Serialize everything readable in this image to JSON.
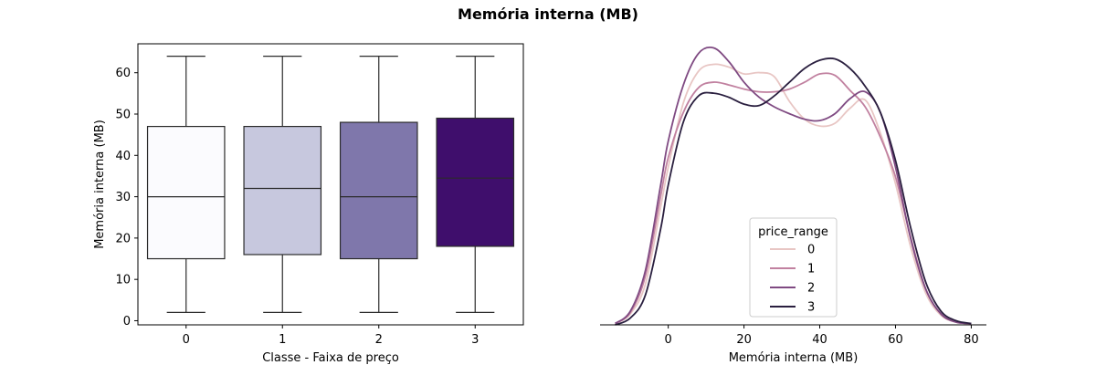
{
  "suptitle": "Memória interna (MB)",
  "chart_data": [
    {
      "type": "box",
      "xlabel": "Classe - Faixa de preço",
      "ylabel": "Memória interna (MB)",
      "categories": [
        "0",
        "1",
        "2",
        "3"
      ],
      "ylim": [
        -1,
        67
      ],
      "yticks": [
        0,
        10,
        20,
        30,
        40,
        50,
        60
      ],
      "boxes": [
        {
          "category": "0",
          "min": 2,
          "q1": 15,
          "median": 30,
          "q3": 47,
          "max": 64,
          "color": "#fbfbfe"
        },
        {
          "category": "1",
          "min": 2,
          "q1": 16,
          "median": 32,
          "q3": 47,
          "max": 64,
          "color": "#c7c8de"
        },
        {
          "category": "2",
          "min": 2,
          "q1": 15,
          "median": 30,
          "q3": 48,
          "max": 64,
          "color": "#7f77ab"
        },
        {
          "category": "3",
          "min": 2,
          "q1": 18,
          "median": 34.5,
          "q3": 49,
          "max": 64,
          "color": "#3f0e6c"
        }
      ]
    },
    {
      "type": "line",
      "subtype": "kde",
      "xlabel": "Memória interna (MB)",
      "xlim": [
        -18,
        84
      ],
      "xticks": [
        0,
        20,
        40,
        60,
        80
      ],
      "ylim": [
        0,
        0.0205
      ],
      "y_axis_visible": false,
      "legend": {
        "title": "price_range",
        "position": "lower-center"
      },
      "series": [
        {
          "name": "0",
          "color": "#e8c6c4",
          "x": [
            -14,
            -10,
            -6,
            -2,
            0,
            4,
            8,
            12,
            16,
            20,
            24,
            28,
            32,
            36,
            40,
            44,
            48,
            52,
            56,
            60,
            64,
            68,
            72,
            76,
            80
          ],
          "y": [
            0.0001,
            0.0008,
            0.003,
            0.0086,
            0.0115,
            0.0162,
            0.0185,
            0.019,
            0.0188,
            0.0183,
            0.0184,
            0.0181,
            0.0163,
            0.015,
            0.0145,
            0.0147,
            0.0158,
            0.0164,
            0.014,
            0.0103,
            0.0057,
            0.0023,
            0.0007,
            0.0002,
            0.0001
          ]
        },
        {
          "name": "1",
          "color": "#c181a0",
          "x": [
            -14,
            -10,
            -6,
            -2,
            0,
            4,
            8,
            12,
            16,
            20,
            24,
            28,
            32,
            36,
            40,
            44,
            48,
            52,
            56,
            60,
            64,
            68,
            72,
            76,
            80
          ],
          "y": [
            0.0001,
            0.0009,
            0.0036,
            0.0094,
            0.0122,
            0.0155,
            0.0173,
            0.0177,
            0.0175,
            0.0172,
            0.017,
            0.017,
            0.0172,
            0.0177,
            0.0183,
            0.0182,
            0.0171,
            0.0159,
            0.0137,
            0.0108,
            0.0064,
            0.0026,
            0.0008,
            0.0002,
            0.0001
          ]
        },
        {
          "name": "2",
          "color": "#7f4a82",
          "x": [
            -14,
            -10,
            -6,
            -2,
            0,
            4,
            8,
            12,
            16,
            20,
            24,
            28,
            32,
            36,
            40,
            44,
            48,
            52,
            56,
            60,
            64,
            68,
            72,
            76,
            80
          ],
          "y": [
            0.0001,
            0.001,
            0.004,
            0.0102,
            0.0134,
            0.0175,
            0.0198,
            0.0202,
            0.0192,
            0.0177,
            0.0166,
            0.0159,
            0.0154,
            0.015,
            0.0149,
            0.0154,
            0.0165,
            0.017,
            0.0155,
            0.0115,
            0.0063,
            0.0026,
            0.0008,
            0.0002,
            0.0001
          ]
        },
        {
          "name": "3",
          "color": "#2a1f3f",
          "x": [
            -14,
            -10,
            -6,
            -2,
            0,
            4,
            8,
            12,
            16,
            20,
            24,
            28,
            32,
            36,
            40,
            44,
            48,
            52,
            56,
            60,
            64,
            68,
            72,
            76,
            80
          ],
          "y": [
            0.0,
            0.0005,
            0.0022,
            0.007,
            0.0102,
            0.0148,
            0.0167,
            0.0169,
            0.0166,
            0.0161,
            0.016,
            0.0167,
            0.0177,
            0.0187,
            0.0193,
            0.0194,
            0.0187,
            0.0174,
            0.0155,
            0.012,
            0.0071,
            0.0031,
            0.001,
            0.0003,
            0.0001
          ]
        }
      ]
    }
  ]
}
